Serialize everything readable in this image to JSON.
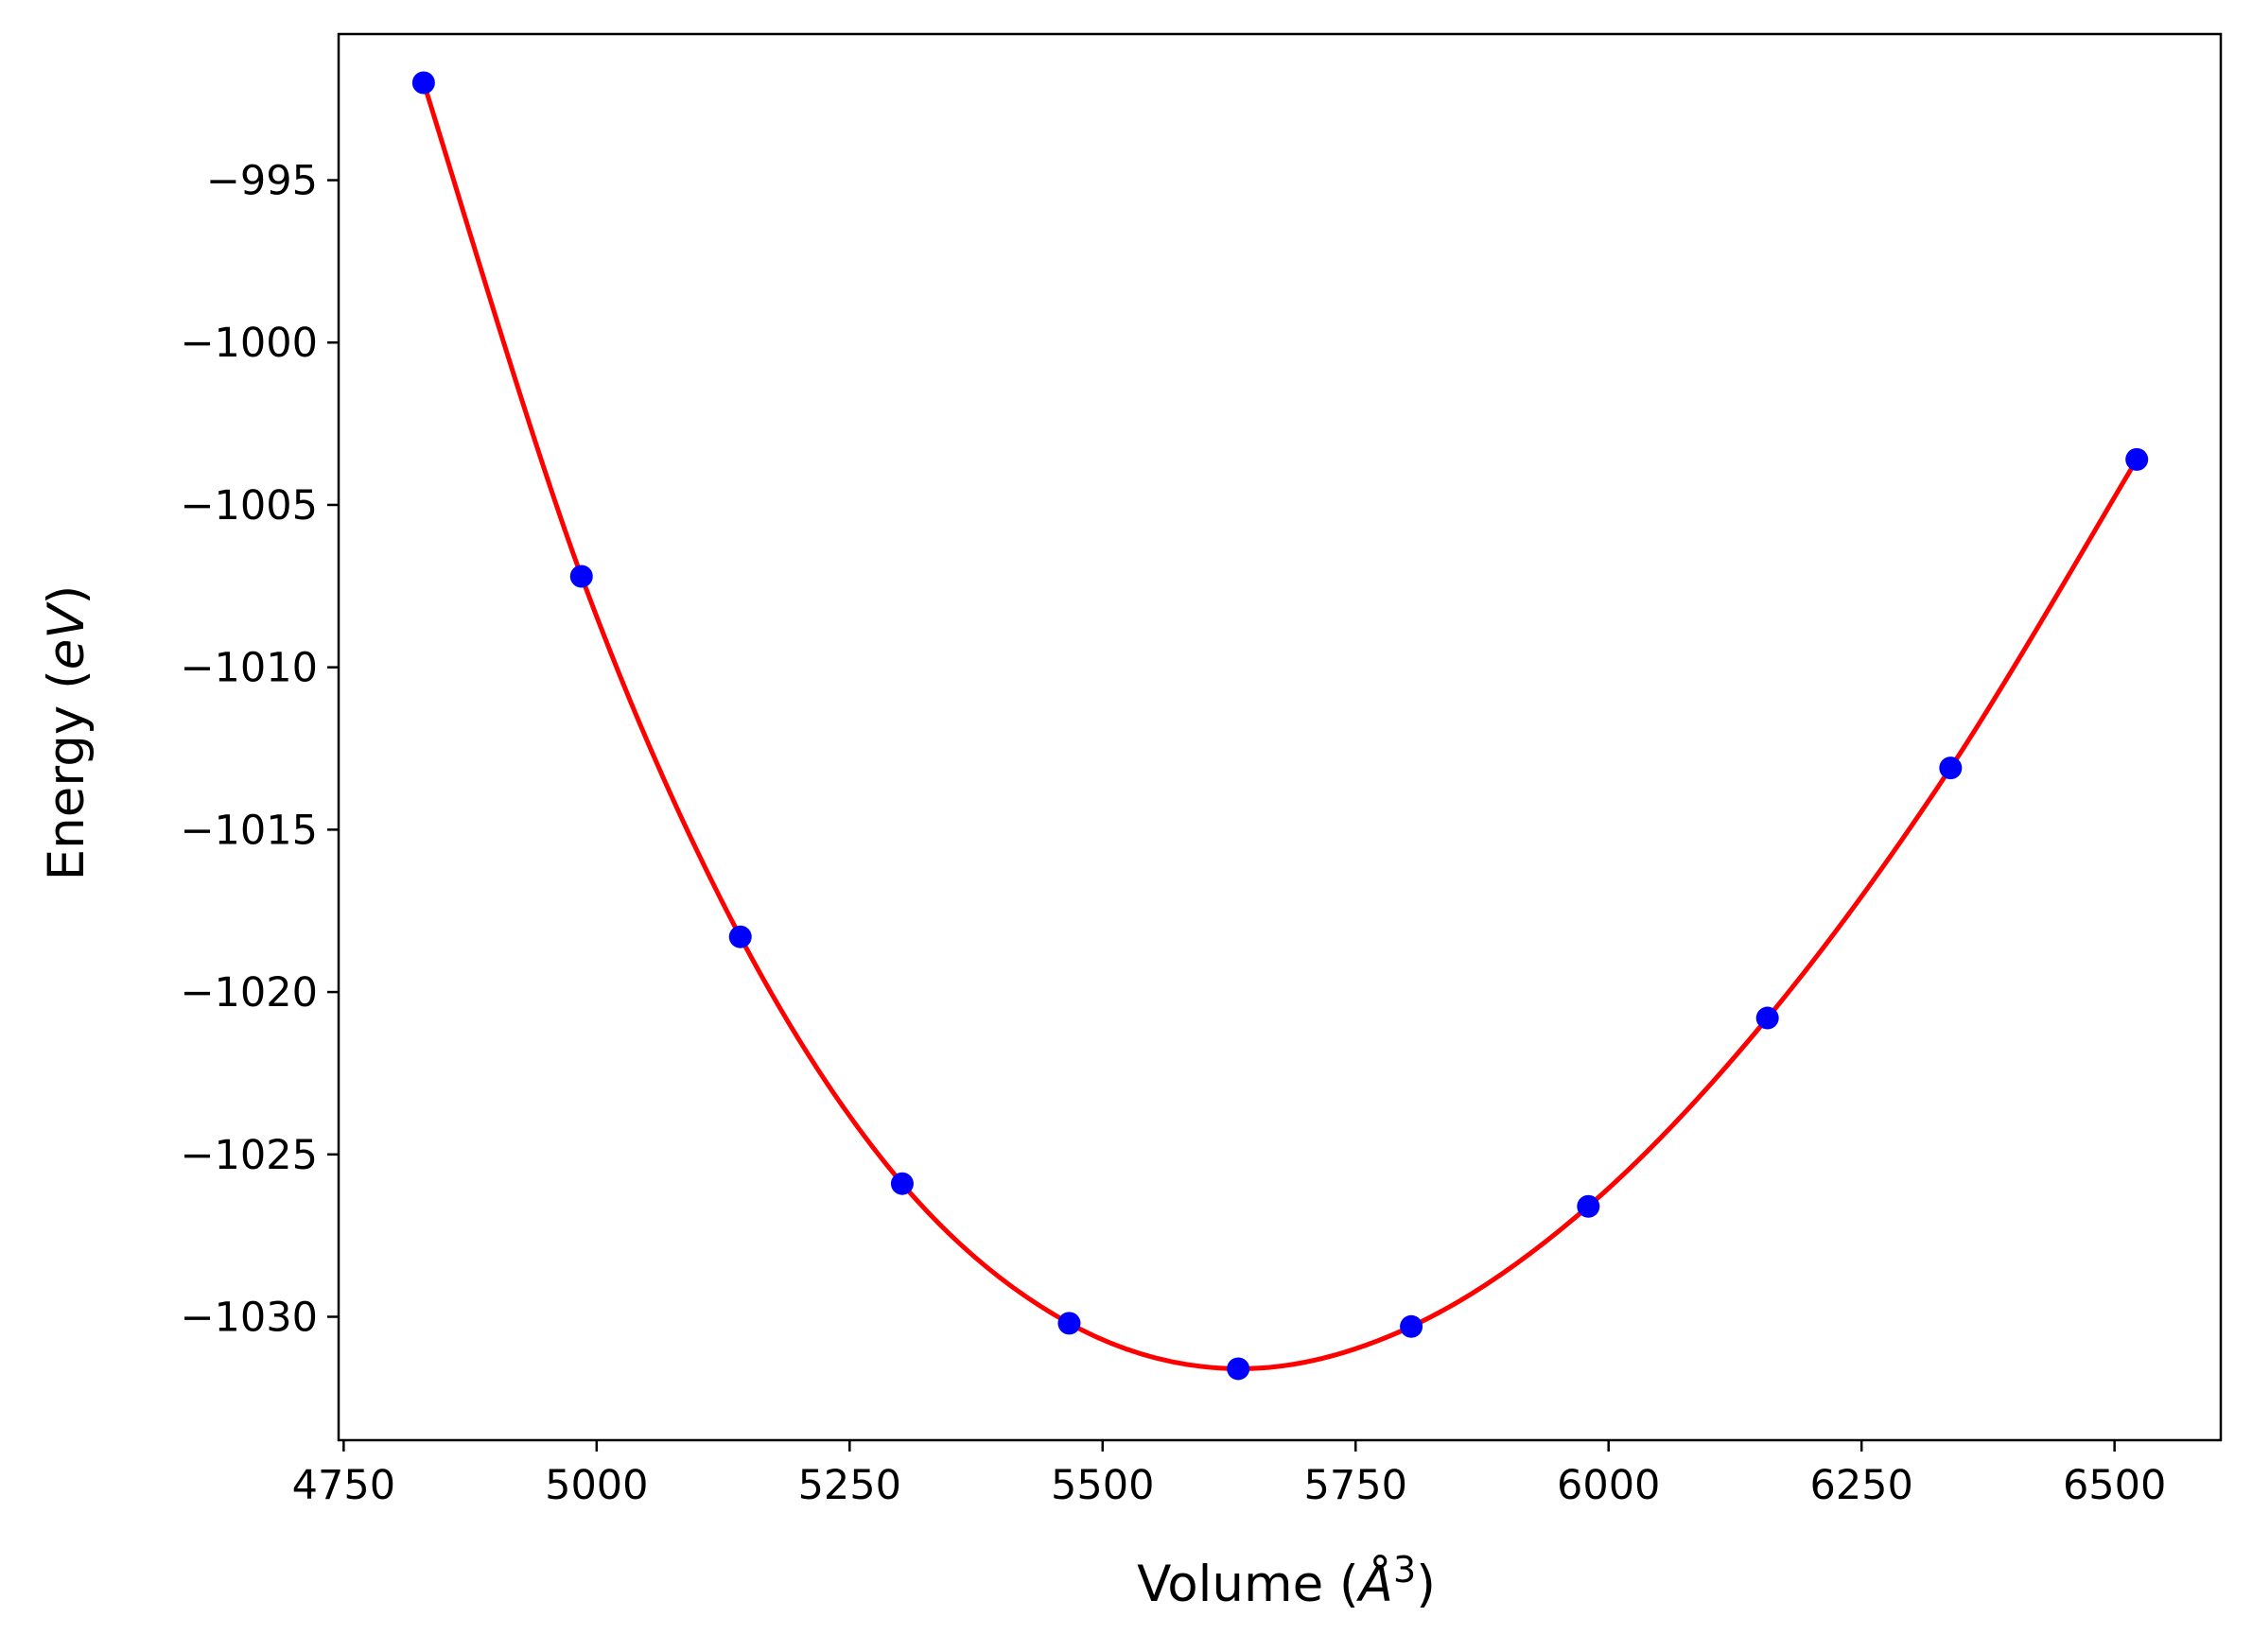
{
  "chart_data": {
    "type": "scatter",
    "title": "",
    "xlabel_main": "Volume (",
    "xlabel_unit": "Å",
    "xlabel_exp": "3",
    "xlabel_close": ")",
    "ylabel_main": "Energy (",
    "ylabel_unit": "eV",
    "ylabel_close": ")",
    "xlim": [
      4745,
      6605
    ],
    "ylim": [
      -1033.8,
      -990.5
    ],
    "x_ticks": [
      4750,
      5000,
      5250,
      5500,
      5750,
      6000,
      6250,
      6500
    ],
    "x_tick_labels": [
      "4750",
      "5000",
      "5250",
      "5500",
      "5750",
      "6000",
      "6250",
      "6500"
    ],
    "y_ticks": [
      -995,
      -1000,
      -1005,
      -1010,
      -1015,
      -1020,
      -1025,
      -1030
    ],
    "y_tick_labels": [
      "−995",
      "−1000",
      "−1005",
      "−1010",
      "−1015",
      "−1020",
      "−1025",
      "−1030"
    ],
    "grid": false,
    "points": {
      "color": "#0000ff",
      "x": [
        4829,
        4985,
        5142,
        5302,
        5467,
        5634,
        5805,
        5980,
        6157,
        6338,
        6522
      ],
      "y": [
        -992.0,
        -1007.2,
        -1018.3,
        -1025.9,
        -1030.2,
        -1031.6,
        -1030.3,
        -1026.6,
        -1020.8,
        -1013.1,
        -1003.6
      ]
    },
    "fit": {
      "color": "#ff0000",
      "x": [
        4829,
        4985,
        5142,
        5302,
        5467,
        5634,
        5805,
        5980,
        6157,
        6338,
        6522
      ],
      "y": [
        -992.0,
        -1007.2,
        -1018.3,
        -1025.9,
        -1030.2,
        -1031.6,
        -1030.3,
        -1026.6,
        -1020.8,
        -1013.1,
        -1003.6
      ]
    }
  }
}
